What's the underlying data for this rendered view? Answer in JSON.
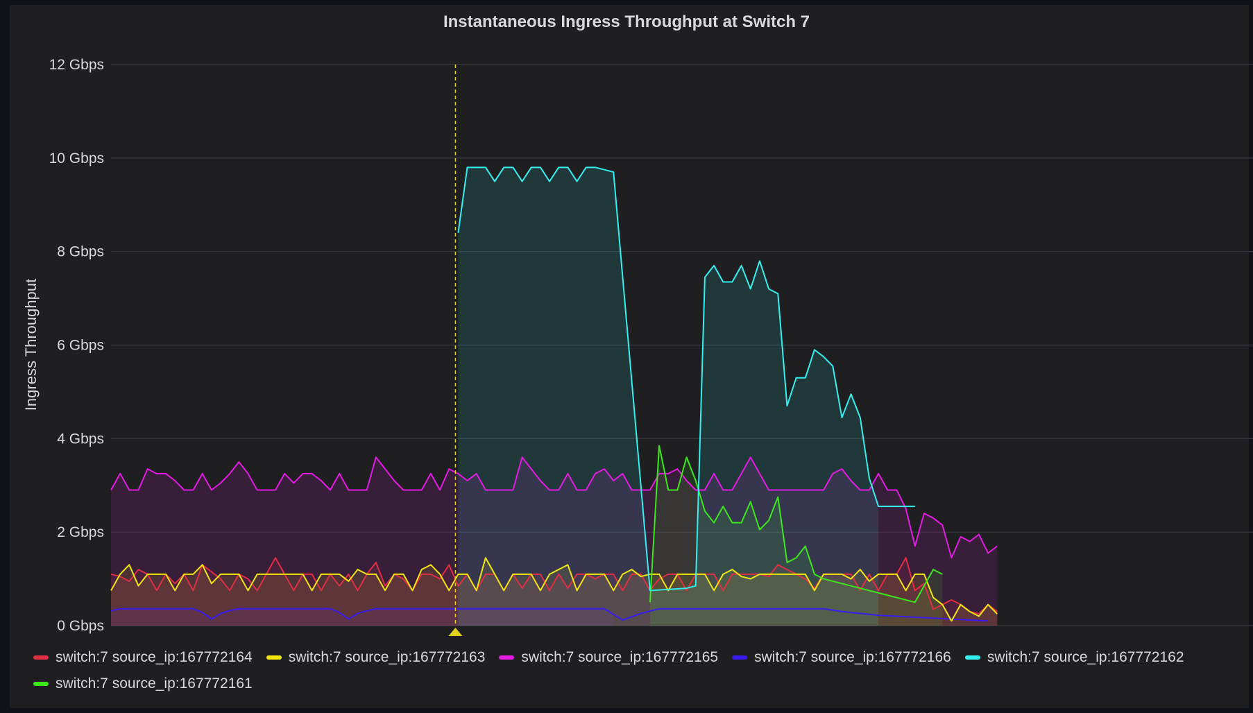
{
  "panel": {
    "title": "Instantaneous Ingress Throughput at Switch 7"
  },
  "chart_data": {
    "type": "area",
    "title": "Instantaneous Ingress Throughput at Switch 7",
    "ylabel": "Ingress Throughput",
    "xlabel": "",
    "y_unit": "Gbps",
    "ylim": [
      0,
      12
    ],
    "y_ticks": [
      {
        "value": 0,
        "label": "0 Gbps"
      },
      {
        "value": 2,
        "label": "2 Gbps"
      },
      {
        "value": 4,
        "label": "4 Gbps"
      },
      {
        "value": 6,
        "label": "6 Gbps"
      },
      {
        "value": 8,
        "label": "8 Gbps"
      },
      {
        "value": 10,
        "label": "10 Gbps"
      },
      {
        "value": 12,
        "label": "12 Gbps"
      }
    ],
    "xlim": [
      0,
      125
    ],
    "grid": true,
    "legend_position": "bottom",
    "annotation": {
      "x": 37.7,
      "color": "#e0d21f"
    },
    "series": [
      {
        "name": "switch:7 source_ip:167772166",
        "color": "#3b1cf0",
        "x": [
          0,
          1,
          2,
          3,
          4,
          5,
          6,
          7,
          8,
          9,
          10,
          11,
          12,
          13,
          14,
          15,
          16,
          17,
          18,
          19,
          20,
          21,
          22,
          23,
          24,
          25,
          26,
          27,
          28,
          29,
          30,
          31,
          32,
          33,
          34,
          35,
          36,
          37,
          38,
          40,
          42,
          44,
          46,
          48,
          50,
          52,
          54,
          55,
          56,
          58,
          60,
          62,
          64,
          66,
          68,
          70,
          72,
          74,
          76,
          78,
          80,
          82,
          84,
          86,
          88,
          90,
          92,
          94,
          96
        ],
        "y": [
          0.32,
          0.36,
          0.36,
          0.36,
          0.36,
          0.36,
          0.36,
          0.36,
          0.36,
          0.36,
          0.28,
          0.14,
          0.26,
          0.32,
          0.36,
          0.36,
          0.36,
          0.36,
          0.36,
          0.36,
          0.36,
          0.36,
          0.36,
          0.36,
          0.36,
          0.28,
          0.14,
          0.26,
          0.32,
          0.36,
          0.36,
          0.36,
          0.36,
          0.36,
          0.36,
          0.36,
          0.36,
          0.36,
          0.36,
          0.36,
          0.36,
          0.36,
          0.36,
          0.36,
          0.36,
          0.36,
          0.36,
          0.24,
          0.12,
          0.26,
          0.36,
          0.36,
          0.36,
          0.36,
          0.36,
          0.36,
          0.36,
          0.36,
          0.36,
          0.36,
          0.3,
          0.26,
          0.22,
          0.2,
          0.18,
          0.16,
          0.14,
          0.12,
          0.1
        ],
        "fill": true,
        "fill_end": 55
      },
      {
        "name": "switch:7 source_ip:167772164",
        "color": "#e02f44",
        "x": [
          0,
          1,
          2,
          3,
          4,
          5,
          6,
          7,
          8,
          9,
          10,
          11,
          12,
          13,
          14,
          15,
          16,
          17,
          18,
          19,
          20,
          21,
          22,
          23,
          24,
          25,
          26,
          27,
          28,
          29,
          30,
          31,
          32,
          33,
          34,
          35,
          36,
          37,
          38,
          39,
          40,
          41,
          42,
          43,
          44,
          45,
          46,
          47,
          48,
          49,
          50,
          51,
          52,
          53,
          54,
          55,
          56,
          57,
          58,
          59,
          60,
          61,
          62,
          63,
          64,
          65,
          66,
          67,
          68,
          69,
          70,
          71,
          72,
          73,
          74,
          75,
          76,
          77,
          78,
          79,
          80,
          81,
          82,
          83,
          84,
          85,
          86,
          87,
          88,
          89,
          90,
          91,
          92,
          93,
          94,
          95,
          96,
          97
        ],
        "y": [
          1.1,
          1.05,
          0.95,
          1.2,
          1.1,
          0.75,
          1.1,
          0.9,
          1.1,
          0.75,
          1.3,
          1.15,
          1.0,
          0.75,
          1.1,
          1.0,
          0.75,
          1.1,
          1.45,
          1.1,
          0.75,
          1.1,
          1.1,
          0.75,
          1.1,
          0.85,
          1.1,
          0.75,
          1.1,
          1.35,
          0.85,
          1.1,
          1.0,
          0.75,
          1.1,
          1.1,
          1.0,
          1.3,
          0.85,
          1.1,
          0.75,
          1.1,
          1.1,
          0.75,
          1.1,
          0.8,
          1.1,
          1.1,
          0.75,
          1.1,
          0.8,
          1.1,
          1.1,
          1.0,
          1.1,
          1.1,
          0.75,
          1.1,
          1.1,
          0.75,
          1.0,
          1.1,
          1.1,
          0.75,
          1.1,
          1.1,
          1.1,
          0.75,
          1.1,
          1.1,
          1.1,
          1.1,
          1.05,
          1.3,
          1.2,
          1.1,
          1.0,
          0.8,
          1.1,
          1.1,
          1.1,
          1.1,
          0.75,
          1.1,
          0.75,
          1.1,
          1.1,
          1.45,
          0.75,
          0.9,
          0.35,
          0.45,
          0.55,
          0.45,
          0.3,
          0.25,
          0.45,
          0.3
        ],
        "fill": true
      },
      {
        "name": "switch:7 source_ip:167772163",
        "color": "#f2e70c",
        "x": [
          0,
          1,
          2,
          3,
          4,
          5,
          6,
          7,
          8,
          9,
          10,
          11,
          12,
          13,
          14,
          15,
          16,
          17,
          18,
          19,
          20,
          21,
          22,
          23,
          24,
          25,
          26,
          27,
          28,
          29,
          30,
          31,
          32,
          33,
          34,
          35,
          36,
          37,
          38,
          39,
          40,
          41,
          42,
          43,
          44,
          45,
          46,
          47,
          48,
          49,
          50,
          51,
          52,
          53,
          54,
          55,
          56,
          57,
          58,
          59,
          60,
          61,
          62,
          63,
          64,
          65,
          66,
          67,
          68,
          69,
          70,
          71,
          72,
          73,
          74,
          75,
          76,
          77,
          78,
          79,
          80,
          81,
          82,
          83,
          84,
          85,
          86,
          87,
          88,
          89,
          90,
          91,
          92,
          93,
          94,
          95,
          96,
          97
        ],
        "y": [
          0.75,
          1.1,
          1.3,
          0.85,
          1.1,
          1.1,
          1.1,
          0.75,
          1.1,
          1.1,
          1.3,
          0.9,
          1.1,
          1.1,
          1.1,
          0.75,
          1.1,
          1.1,
          1.1,
          1.1,
          1.1,
          1.1,
          0.75,
          1.1,
          1.1,
          1.1,
          0.95,
          1.2,
          1.1,
          1.1,
          0.75,
          1.1,
          1.1,
          0.75,
          1.2,
          1.3,
          1.1,
          0.75,
          1.1,
          1.1,
          0.75,
          1.45,
          1.1,
          0.75,
          1.1,
          1.1,
          1.1,
          0.75,
          1.1,
          1.2,
          1.3,
          0.75,
          1.1,
          1.1,
          1.1,
          0.75,
          1.1,
          1.2,
          1.05,
          1.1,
          1.1,
          0.75,
          1.1,
          1.1,
          1.1,
          1.1,
          0.75,
          1.1,
          1.2,
          1.05,
          1.0,
          1.1,
          1.1,
          1.1,
          1.1,
          1.1,
          1.1,
          0.75,
          1.1,
          1.1,
          1.1,
          1.0,
          1.2,
          0.95,
          1.1,
          1.1,
          1.1,
          0.75,
          1.1,
          1.1,
          0.6,
          0.45,
          0.1,
          0.45,
          0.3,
          0.2,
          0.45,
          0.25
        ],
        "fill": true
      },
      {
        "name": "switch:7 source_ip:167772165",
        "color": "#e31be3",
        "x": [
          0,
          1,
          2,
          3,
          4,
          5,
          6,
          7,
          8,
          9,
          10,
          11,
          12,
          13,
          14,
          15,
          16,
          17,
          18,
          19,
          20,
          21,
          22,
          23,
          24,
          25,
          26,
          27,
          28,
          29,
          30,
          31,
          32,
          33,
          34,
          35,
          36,
          37,
          38,
          39,
          40,
          41,
          42,
          43,
          44,
          45,
          46,
          47,
          48,
          49,
          50,
          51,
          52,
          53,
          54,
          55,
          56,
          57,
          58,
          59,
          60,
          61,
          62,
          63,
          64,
          65,
          66,
          67,
          68,
          69,
          70,
          71,
          72,
          73,
          74,
          75,
          76,
          77,
          78,
          79,
          80,
          81,
          82,
          83,
          84,
          85,
          86,
          87,
          88,
          89,
          90,
          91,
          92,
          93,
          94,
          95,
          96,
          97
        ],
        "y": [
          2.9,
          3.25,
          2.9,
          2.9,
          3.35,
          3.25,
          3.25,
          3.1,
          2.9,
          2.9,
          3.25,
          2.9,
          3.05,
          3.25,
          3.5,
          3.25,
          2.9,
          2.9,
          2.9,
          3.25,
          3.05,
          3.25,
          3.25,
          3.1,
          2.9,
          3.25,
          2.9,
          2.9,
          2.9,
          3.6,
          3.35,
          3.1,
          2.9,
          2.9,
          2.9,
          3.25,
          2.9,
          3.35,
          3.25,
          3.1,
          3.25,
          2.9,
          2.9,
          2.9,
          2.9,
          3.6,
          3.35,
          3.1,
          2.9,
          2.9,
          3.25,
          2.9,
          2.9,
          3.25,
          3.35,
          3.1,
          3.25,
          2.9,
          2.9,
          2.9,
          3.25,
          3.25,
          3.35,
          3.1,
          2.9,
          2.9,
          3.25,
          2.9,
          2.9,
          3.25,
          3.6,
          3.25,
          2.9,
          2.9,
          2.9,
          2.9,
          2.9,
          2.9,
          2.9,
          3.25,
          3.35,
          3.1,
          2.9,
          2.9,
          3.25,
          2.9,
          2.9,
          2.5,
          1.7,
          2.4,
          2.3,
          2.15,
          1.45,
          1.9,
          1.8,
          1.95,
          1.55,
          1.7
        ],
        "fill": true
      },
      {
        "name": "switch:7 source_ip:167772161",
        "color": "#3de81a",
        "x": [
          59,
          60,
          61,
          62,
          63,
          64,
          65,
          66,
          67,
          68,
          69,
          70,
          71,
          72,
          73,
          74,
          75,
          76,
          77,
          78,
          80,
          82,
          84,
          86,
          88,
          90,
          91
        ],
        "y": [
          0.5,
          3.85,
          2.9,
          2.9,
          3.6,
          3.1,
          2.45,
          2.2,
          2.55,
          2.2,
          2.2,
          2.65,
          2.05,
          2.25,
          2.75,
          1.35,
          1.45,
          1.7,
          1.1,
          1.0,
          0.9,
          0.8,
          0.7,
          0.6,
          0.5,
          1.2,
          1.1
        ],
        "fill": true
      },
      {
        "name": "switch:7 source_ip:167772162",
        "color": "#33f0f0",
        "x": [
          38,
          39,
          40,
          41,
          42,
          43,
          44,
          45,
          46,
          47,
          48,
          49,
          50,
          51,
          52,
          53,
          55,
          59,
          63,
          64,
          65,
          66,
          67,
          68,
          69,
          70,
          71,
          72,
          73,
          74,
          75,
          76,
          77,
          78,
          79,
          80,
          81,
          82,
          83,
          84,
          85,
          86,
          87,
          88
        ],
        "y": [
          8.4,
          9.8,
          9.8,
          9.8,
          9.5,
          9.8,
          9.8,
          9.5,
          9.8,
          9.8,
          9.5,
          9.8,
          9.8,
          9.5,
          9.8,
          9.8,
          9.7,
          0.75,
          0.8,
          0.85,
          7.45,
          7.7,
          7.35,
          7.35,
          7.7,
          7.2,
          7.8,
          7.2,
          7.1,
          4.7,
          5.3,
          5.3,
          5.9,
          5.75,
          5.55,
          4.45,
          4.95,
          4.45,
          3.15,
          2.55,
          2.55,
          2.55,
          2.55,
          2.55
        ],
        "fill": true,
        "fill_end": 84
      }
    ],
    "legend_order": [
      1,
      2,
      3,
      0,
      5,
      4
    ]
  }
}
